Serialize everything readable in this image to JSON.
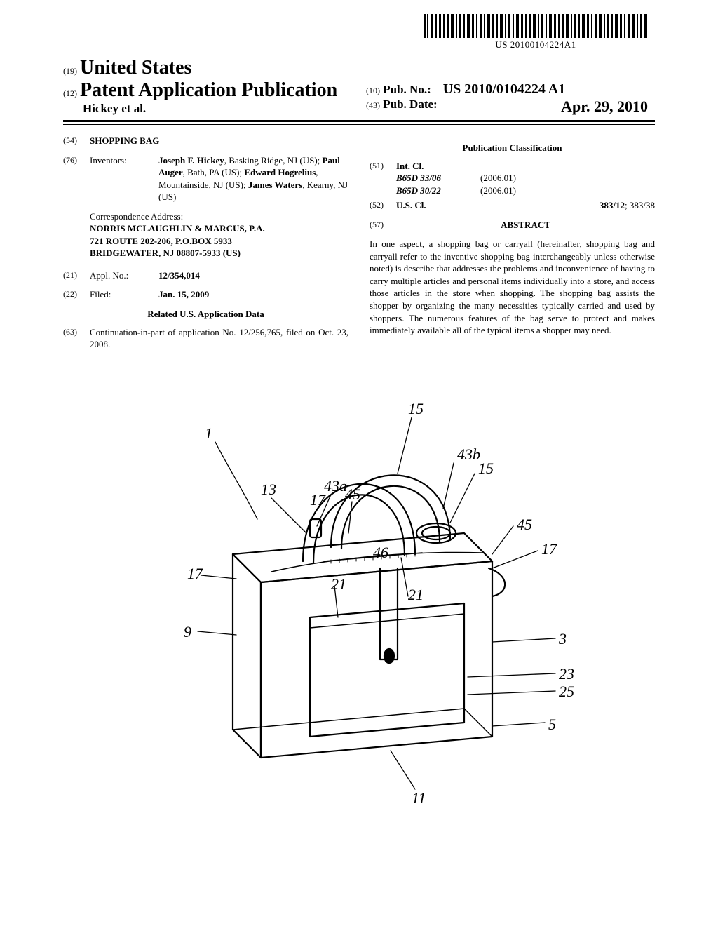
{
  "barcode": {
    "text": "US 20100104224A1"
  },
  "header": {
    "code19": "(19)",
    "country": "United States",
    "code12": "(12)",
    "pub_title": "Patent Application Publication",
    "author_line": "Hickey et al.",
    "code10": "(10)",
    "pub_no_label": "Pub. No.:",
    "pub_no_value": "US 2010/0104224 A1",
    "code43": "(43)",
    "pub_date_label": "Pub. Date:",
    "pub_date_value": "Apr. 29, 2010"
  },
  "left_col": {
    "title": {
      "code": "(54)",
      "value": "SHOPPING BAG"
    },
    "inventors": {
      "code": "(76)",
      "label": "Inventors:",
      "value_parts": [
        {
          "text": "Joseph F. Hickey",
          "bold": true
        },
        {
          "text": ", Basking Ridge, NJ (US); "
        },
        {
          "text": "Paul Auger",
          "bold": true
        },
        {
          "text": ", Bath, PA (US); "
        },
        {
          "text": "Edward Hogrelius",
          "bold": true
        },
        {
          "text": ", Mountainside, NJ (US); "
        },
        {
          "text": "James Waters",
          "bold": true
        },
        {
          "text": ", Kearny, NJ (US)"
        }
      ]
    },
    "correspondence": {
      "label": "Correspondence Address:",
      "lines": [
        "NORRIS MCLAUGHLIN & MARCUS, P.A.",
        "721 ROUTE 202-206, P.O.BOX 5933",
        "BRIDGEWATER, NJ 08807-5933 (US)"
      ]
    },
    "appl_no": {
      "code": "(21)",
      "label": "Appl. No.:",
      "value": "12/354,014"
    },
    "filed": {
      "code": "(22)",
      "label": "Filed:",
      "value": "Jan. 15, 2009"
    },
    "related": {
      "header": "Related U.S. Application Data",
      "code": "(63)",
      "text": "Continuation-in-part of application No. 12/256,765, filed on Oct. 23, 2008."
    }
  },
  "right_col": {
    "classification_header": "Publication Classification",
    "int_cl": {
      "code": "(51)",
      "label": "Int. Cl.",
      "rows": [
        {
          "code": "B65D 33/06",
          "year": "(2006.01)"
        },
        {
          "code": "B65D 30/22",
          "year": "(2006.01)"
        }
      ]
    },
    "us_cl": {
      "code": "(52)",
      "label": "U.S. Cl.",
      "value": "383/12; 383/38"
    },
    "abstract": {
      "code": "(57)",
      "header": "ABSTRACT",
      "text": "In one aspect, a shopping bag or carryall (hereinafter, shopping bag and carryall refer to the inventive shopping bag interchangeably unless otherwise noted) is describe that addresses the problems and inconvenience of having to carry multiple articles and personal items individually into a store, and access those articles in the store when shopping. The shopping bag assists the shopper by organizing the many necessities typically carried and used by shoppers. The numerous features of the bag serve to protect and makes immediately available all of the typical items a shopper may need."
    }
  },
  "figure": {
    "labels": [
      "1",
      "13",
      "17",
      "9",
      "43a",
      "17",
      "45",
      "21",
      "15",
      "43b",
      "15",
      "46",
      "21",
      "45",
      "17",
      "3",
      "23",
      "25",
      "5",
      "11"
    ]
  }
}
